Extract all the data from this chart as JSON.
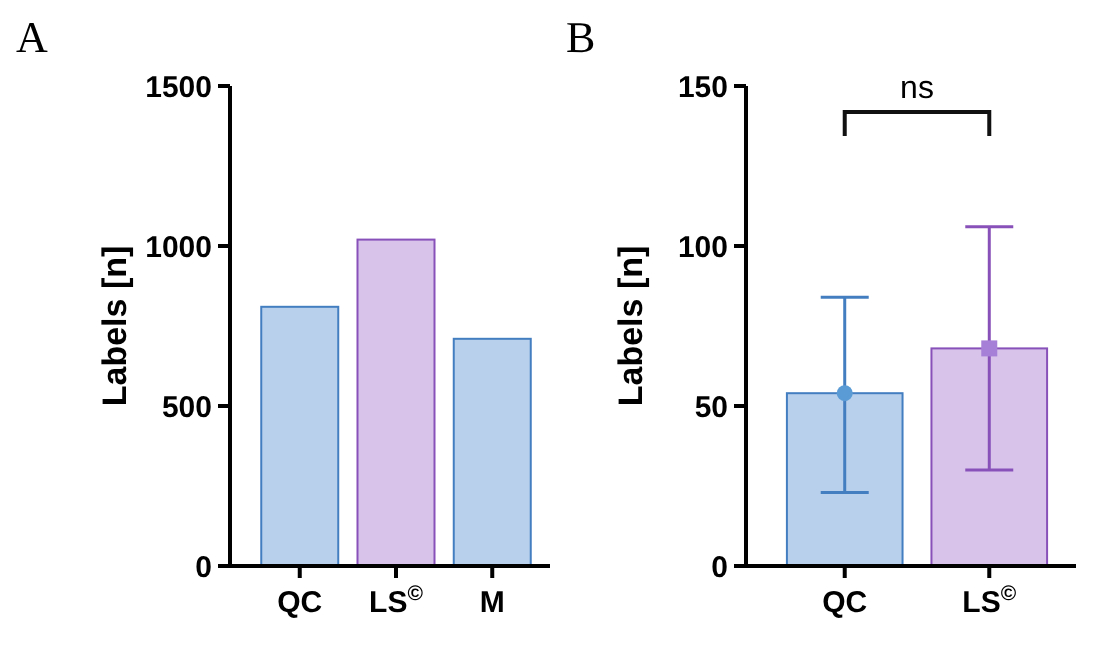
{
  "chart_data": [
    {
      "type": "bar",
      "title": "A",
      "ylabel": "Labels [n]",
      "categories": [
        "QC",
        "LS$^{©}$",
        "M"
      ],
      "values": [
        810,
        1020,
        710
      ],
      "colors": [
        "#b8d0eb",
        "#d8c4ea",
        "#b8d0eb"
      ],
      "ylim": [
        0,
        1500
      ],
      "yticks": [
        0,
        500,
        1000,
        1500
      ],
      "grid": false
    },
    {
      "type": "bar",
      "title": "B",
      "ylabel": "Labels [n]",
      "categories": [
        "QC",
        "LS$^{©}$"
      ],
      "ylim": [
        0,
        150
      ],
      "yticks": [
        0,
        50,
        100,
        150
      ],
      "grid": false,
      "annotations": [
        "ns"
      ],
      "series": [
        {
          "values": [
            54,
            68
          ],
          "colors": [
            "#b8d0eb",
            "#d8c4ea"
          ],
          "errors": [
            [
              23,
              84
            ],
            [
              30,
              106
            ]
          ]
        },
        {
          "type": "scatter",
          "x": [
            "QC"
          ],
          "values": [
            54
          ],
          "color": "#5b9bd5",
          "marker": "circle"
        },
        {
          "type": "scatter",
          "x": [
            "LS$^{©}$"
          ],
          "values": [
            68
          ],
          "color": "#a67fd6",
          "marker": "square"
        }
      ]
    }
  ]
}
